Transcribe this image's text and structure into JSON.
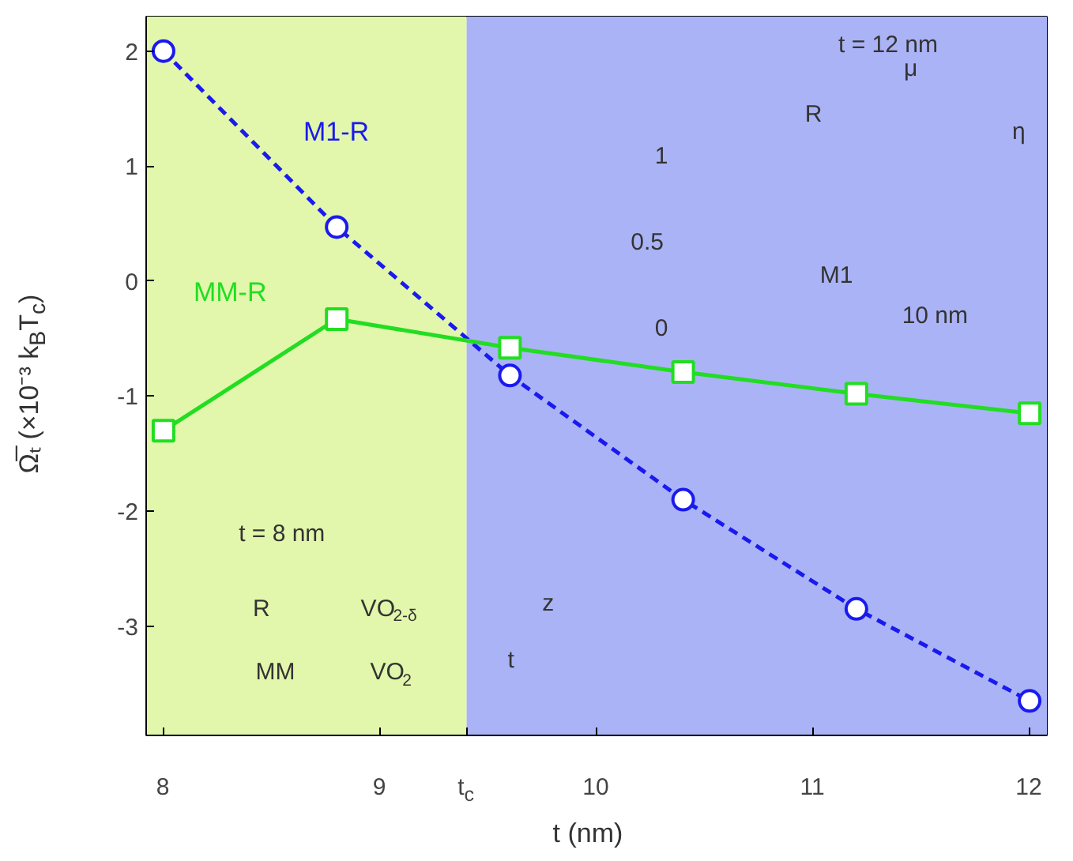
{
  "chart_data": {
    "type": "line",
    "xlabel": "t (nm)",
    "ylabel": "Ω̅ₜ (×10⁻³ k$_{B}$T$_{c}$)",
    "xlim": [
      7.92,
      12.08
    ],
    "ylim": [
      -3.95,
      2.3
    ],
    "xticks": [
      8,
      {
        "value": 9.4,
        "label": "t$_{c}$"
      },
      9,
      10,
      11,
      12
    ],
    "yticks": [
      -3,
      -2,
      -1,
      0,
      1,
      2
    ],
    "grid": false,
    "legend": false,
    "x": [
      8,
      8.8,
      9.6,
      10.4,
      11.2,
      12
    ],
    "series": [
      {
        "name": "M1-R",
        "color": "#1a1aee",
        "values": [
          2.0,
          0.47,
          -0.82,
          -1.9,
          -2.85,
          -3.65
        ],
        "marker": "circle",
        "line_style": "dashed"
      },
      {
        "name": "MM-R",
        "color": "#22dd22",
        "values": [
          -1.3,
          -0.33,
          -0.58,
          -0.79,
          -0.98,
          -1.15
        ],
        "marker": "square",
        "line_style": "solid"
      }
    ],
    "bands": [
      {
        "axis": "x",
        "from": 7.92,
        "to": 9.4,
        "color": "#e2f7ab"
      },
      {
        "axis": "x",
        "from": 9.4,
        "to": 12.08,
        "color": "#aab3f6"
      }
    ],
    "annotations": [
      "t = 12 nm",
      "R",
      "μ",
      "η",
      "1",
      "0.5",
      "0",
      "M1",
      "10 nm",
      "t = 8 nm",
      "R",
      "VO$_{2-δ}$",
      "MM",
      "VO$_{2}$",
      "z",
      "t"
    ]
  }
}
